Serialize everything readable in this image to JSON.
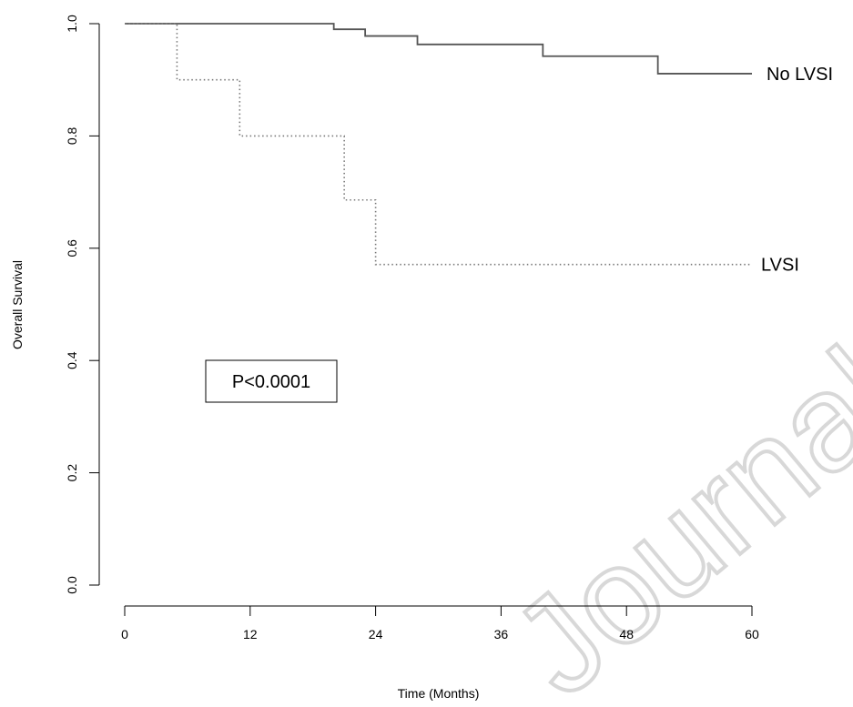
{
  "chart_data": {
    "type": "line",
    "step": true,
    "xlabel": "Time (Months)",
    "ylabel": "Overall Survival",
    "xlim": [
      0,
      60
    ],
    "ylim": [
      0.0,
      1.0
    ],
    "xticks": [
      0,
      12,
      24,
      36,
      48,
      60
    ],
    "yticks": [
      "0.0",
      "0.2",
      "0.4",
      "0.6",
      "0.8",
      "1.0"
    ],
    "grid": false,
    "annotation": "P<0.0001",
    "series": [
      {
        "name": "No LVSI",
        "style": "solid",
        "color": "#555555",
        "points": [
          [
            0,
            1.0
          ],
          [
            20,
            0.99
          ],
          [
            23,
            0.978
          ],
          [
            28,
            0.963
          ],
          [
            40,
            0.942
          ],
          [
            51,
            0.911
          ],
          [
            60,
            0.911
          ]
        ]
      },
      {
        "name": "LVSI",
        "style": "dotted",
        "color": "#777777",
        "points": [
          [
            0,
            1.0
          ],
          [
            5,
            0.9
          ],
          [
            11,
            0.8
          ],
          [
            21,
            0.686
          ],
          [
            24,
            0.571
          ],
          [
            60,
            0.571
          ]
        ]
      }
    ]
  },
  "watermark": "Journal Pre-proof"
}
